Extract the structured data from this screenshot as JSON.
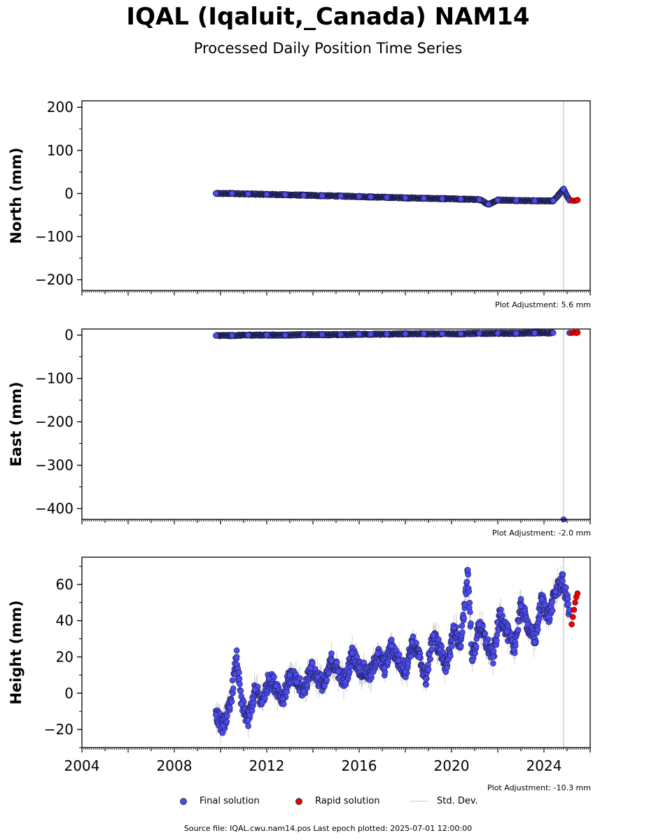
{
  "header": {
    "title": "IQAL (Iqaluit,_Canada) NAM14",
    "subtitle": "Processed Daily Position Time Series"
  },
  "legend": {
    "final": "Final solution",
    "rapid": "Rapid solution",
    "stddev": "Std. Dev."
  },
  "footer": {
    "source": "Source file: IQAL.cwu.nam14.pos  Last epoch plotted: 2025-07-01 12:00:00"
  },
  "colors": {
    "final": "#4b4bf2",
    "rapid": "#ee0000",
    "stddev": "#b0b0b0"
  },
  "chart_data": [
    {
      "type": "scatter",
      "ylabel": "North (mm)",
      "adjustment": "Plot Adjustment: 5.6 mm",
      "xlim": [
        2004.0,
        2026.0
      ],
      "ylim": [
        -225,
        215
      ],
      "yticks": [
        200,
        100,
        0,
        -100,
        -200
      ],
      "ytick_labels": [
        "200",
        "100",
        "0",
        "−100",
        "−200"
      ],
      "xticks": [],
      "outlier_line_x": 2024.85,
      "series": [
        {
          "name": "Final solution",
          "x": [
            2009.8,
            2010.5,
            2011.2,
            2012.0,
            2012.8,
            2013.6,
            2014.4,
            2015.2,
            2016.0,
            2016.5,
            2017.2,
            2018.0,
            2018.8,
            2019.6,
            2020.4,
            2021.2,
            2021.6,
            2022.0,
            2022.8,
            2023.6,
            2024.4,
            2024.85,
            2025.1
          ],
          "y": [
            0,
            0,
            -1,
            -2,
            -3,
            -4,
            -5,
            -6,
            -7,
            -8,
            -9,
            -10,
            -11,
            -12,
            -13,
            -14,
            -25,
            -15,
            -16,
            -17,
            -17,
            10,
            -16
          ]
        },
        {
          "name": "Rapid solution",
          "x": [
            2025.2,
            2025.3,
            2025.4,
            2025.5
          ],
          "y": [
            -16,
            -17,
            -16,
            -15
          ]
        }
      ]
    },
    {
      "type": "scatter",
      "ylabel": "East (mm)",
      "adjustment": "Plot Adjustment: -2.0 mm",
      "xlim": [
        2004.0,
        2026.0
      ],
      "ylim": [
        -425,
        14
      ],
      "yticks": [
        0,
        -100,
        -200,
        -300,
        -400
      ],
      "ytick_labels": [
        "0",
        "−100",
        "−200",
        "−300",
        "−400"
      ],
      "xticks": [],
      "outlier_line_x": 2024.85,
      "series": [
        {
          "name": "Final solution",
          "x": [
            2009.8,
            2010.5,
            2011.2,
            2012.0,
            2012.8,
            2013.6,
            2014.4,
            2015.2,
            2016.0,
            2016.5,
            2017.2,
            2018.0,
            2018.8,
            2019.6,
            2020.4,
            2021.2,
            2022.0,
            2022.8,
            2023.6,
            2024.4,
            2024.85,
            2025.1
          ],
          "y": [
            -1,
            -1,
            0,
            0,
            0,
            1,
            1,
            1,
            2,
            2,
            2,
            3,
            3,
            3,
            3,
            4,
            4,
            4,
            5,
            5,
            -425,
            5
          ]
        },
        {
          "name": "Rapid solution",
          "x": [
            2025.2,
            2025.3,
            2025.4,
            2025.5
          ],
          "y": [
            5,
            6,
            5,
            6
          ]
        }
      ]
    },
    {
      "type": "scatter",
      "ylabel": "Height (mm)",
      "adjustment": "Plot Adjustment: -10.3 mm",
      "xlim": [
        2004.0,
        2026.0
      ],
      "ylim": [
        -30,
        75
      ],
      "yticks": [
        60,
        40,
        20,
        0,
        -20
      ],
      "ytick_labels": [
        "60",
        "40",
        "20",
        "0",
        "−20"
      ],
      "xticks": [
        2004,
        2008,
        2012,
        2016,
        2020,
        2024
      ],
      "xtick_labels": [
        "2004",
        "2008",
        "2012",
        "2016",
        "2020",
        "2024"
      ],
      "outlier_line_x": 2024.85,
      "series": [
        {
          "name": "Final solution",
          "x": [
            2009.8,
            2010.1,
            2010.4,
            2010.7,
            2010.9,
            2011.2,
            2011.5,
            2011.8,
            2012.1,
            2012.4,
            2012.7,
            2013.0,
            2013.3,
            2013.6,
            2013.9,
            2014.2,
            2014.5,
            2014.8,
            2015.1,
            2015.4,
            2015.7,
            2016.0,
            2016.5,
            2016.8,
            2017.1,
            2017.4,
            2017.7,
            2018.0,
            2018.3,
            2018.6,
            2018.9,
            2019.2,
            2019.5,
            2019.8,
            2020.1,
            2020.4,
            2020.7,
            2020.9,
            2021.2,
            2021.5,
            2021.8,
            2022.1,
            2022.4,
            2022.7,
            2023.0,
            2023.3,
            2023.6,
            2023.9,
            2024.2,
            2024.5,
            2024.8,
            2025.1
          ],
          "y": [
            -12,
            -18,
            -8,
            20,
            -6,
            -15,
            2,
            -5,
            8,
            4,
            -3,
            10,
            6,
            1,
            14,
            9,
            4,
            18,
            12,
            6,
            22,
            14,
            10,
            22,
            14,
            26,
            18,
            12,
            28,
            20,
            8,
            32,
            24,
            14,
            36,
            26,
            68,
            18,
            38,
            28,
            20,
            44,
            34,
            24,
            48,
            38,
            28,
            52,
            42,
            56,
            62,
            46
          ]
        },
        {
          "name": "Rapid solution",
          "x": [
            2025.2,
            2025.25,
            2025.3,
            2025.35,
            2025.4,
            2025.45
          ],
          "y": [
            38,
            42,
            46,
            50,
            53,
            55
          ]
        }
      ]
    }
  ]
}
